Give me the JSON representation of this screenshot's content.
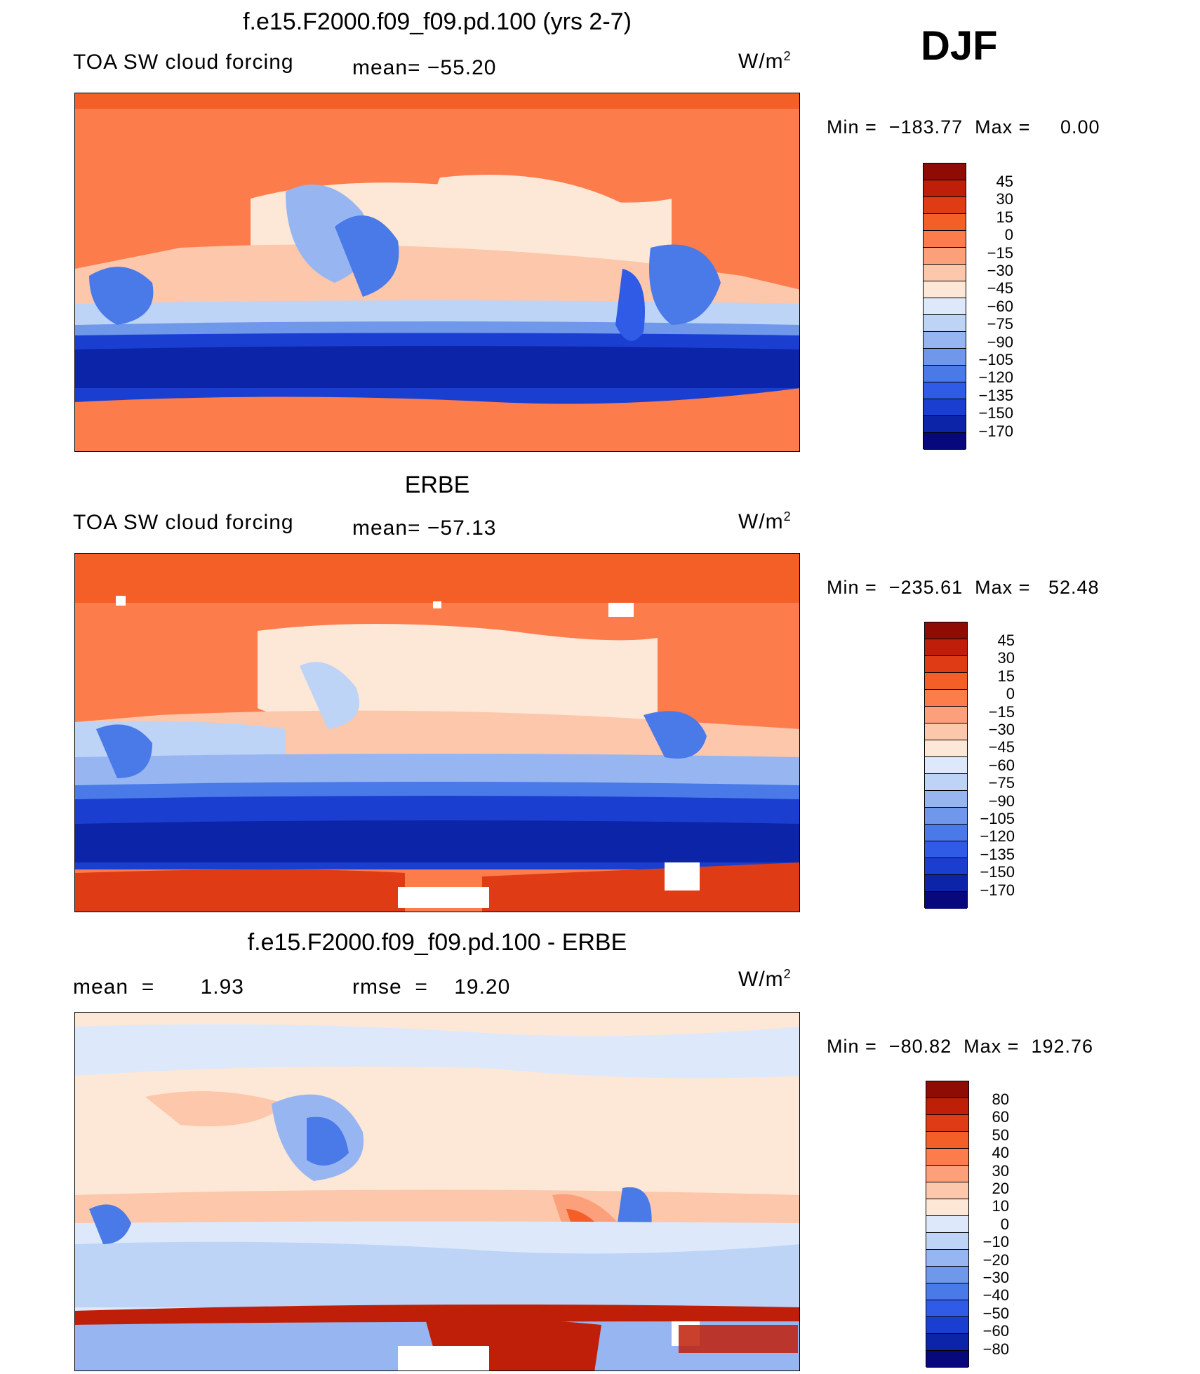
{
  "season": "DJF",
  "colors": {
    "cf_levels": [
      "#08087d",
      "#0b24a8",
      "#1a3fd0",
      "#2f5be6",
      "#4a7ae8",
      "#6f97ea",
      "#97b6f1",
      "#bdd4f7",
      "#dde9fb",
      "#fde7d6",
      "#fcc7ab",
      "#fca07b",
      "#fc7c4c",
      "#f45f28",
      "#df3c15",
      "#bf1f08",
      "#8f0c05"
    ],
    "diff_levels": [
      "#08087d",
      "#0b24a8",
      "#1a3fd0",
      "#2f5be6",
      "#4a7ae8",
      "#6f97ea",
      "#97b6f1",
      "#bdd4f7",
      "#dde9fb",
      "#fde7d6",
      "#fcc7ab",
      "#fca07b",
      "#fc7c4c",
      "#f45f28",
      "#df3c15",
      "#bf1f08",
      "#8f0c05"
    ]
  },
  "panels": [
    {
      "title": "f.e15.F2000.f09_f09.pd.100 (yrs 2-7)",
      "left_label": "TOA SW cloud forcing",
      "center_label": "mean=  −55.20",
      "units": "W/m",
      "units_sup": "2",
      "min_label": "Min  =",
      "min_value": "−183.77",
      "max_label": "Max  =",
      "max_value": "0.00",
      "colorbar_ticks": [
        "45",
        "30",
        "15",
        "0",
        "−15",
        "−30",
        "−45",
        "−60",
        "−75",
        "−90",
        "−105",
        "−120",
        "−135",
        "−150",
        "−170"
      ]
    },
    {
      "title": "ERBE",
      "left_label": "TOA SW cloud forcing",
      "center_label": "mean=  −57.13",
      "units": "W/m",
      "units_sup": "2",
      "min_label": "Min  =",
      "min_value": "−235.61",
      "max_label": "Max  =",
      "max_value": "52.48",
      "colorbar_ticks": [
        "45",
        "30",
        "15",
        "0",
        "−15",
        "−30",
        "−45",
        "−60",
        "−75",
        "−90",
        "−105",
        "−120",
        "−135",
        "−150",
        "−170"
      ]
    },
    {
      "title": "f.e15.F2000.f09_f09.pd.100 - ERBE",
      "left_label": "mean  =       1.93",
      "center_label": "rmse  =    19.20",
      "units": "W/m",
      "units_sup": "2",
      "min_label": "Min  =",
      "min_value": "−80.82",
      "max_label": "Max  =",
      "max_value": "192.76",
      "colorbar_ticks": [
        "80",
        "60",
        "50",
        "40",
        "30",
        "20",
        "10",
        "0",
        "−10",
        "−20",
        "−30",
        "−40",
        "−50",
        "−60",
        "−80"
      ]
    }
  ]
}
